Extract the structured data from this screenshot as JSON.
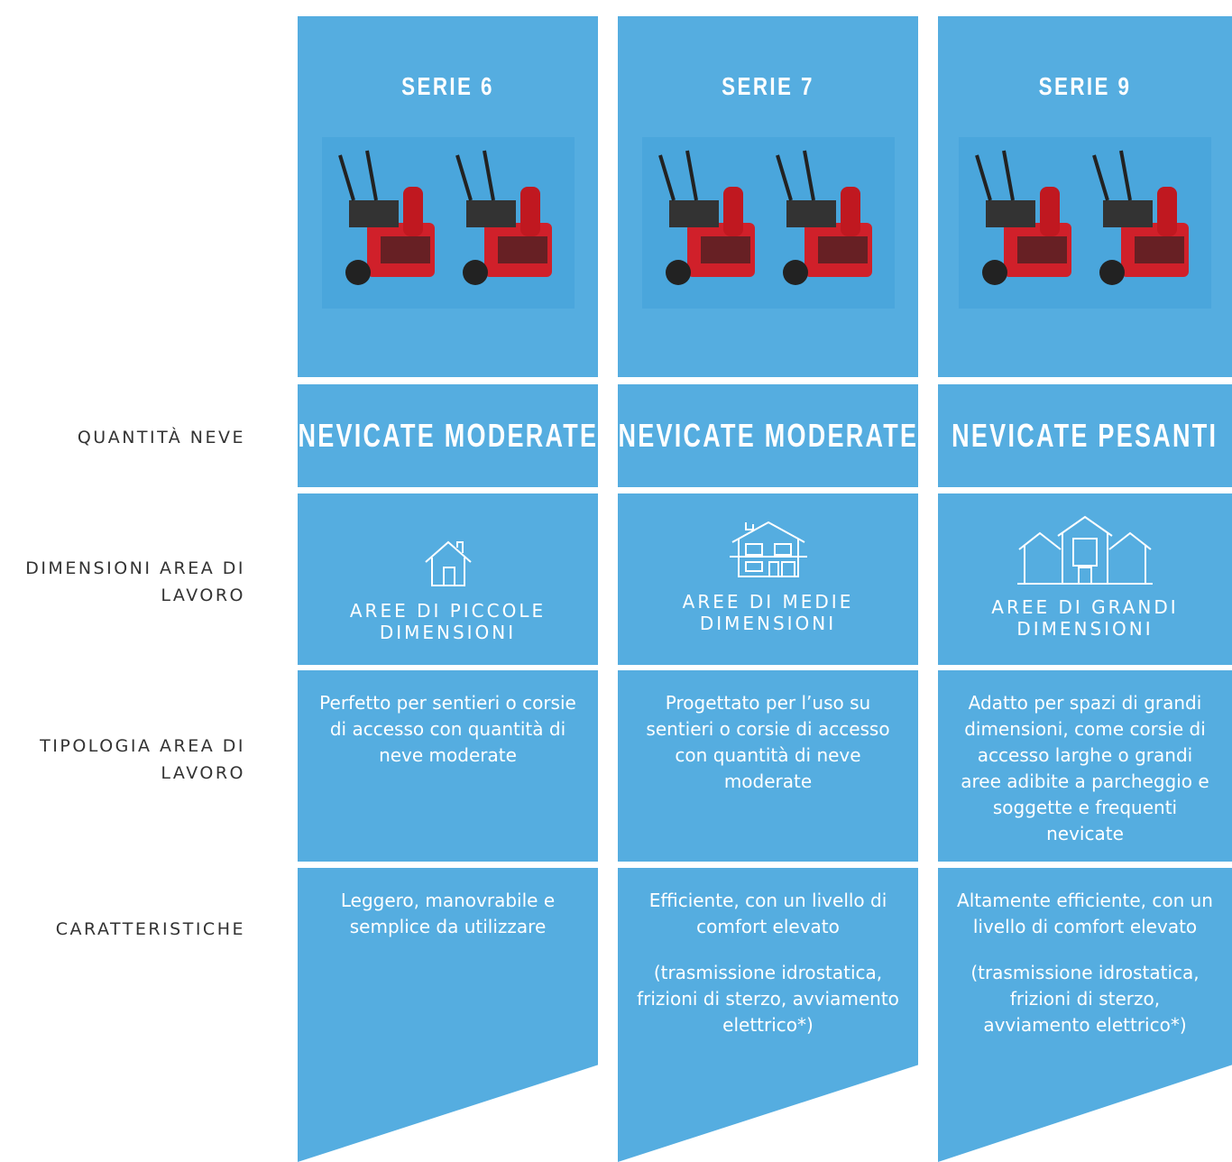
{
  "row_labels": [
    "QUANTITÀ NEVE",
    "DIMENSIONI AREA DI LAVORO",
    "TIPOLOGIA AREA DI LAVORO",
    "CARATTERISTICHE"
  ],
  "columns": [
    {
      "title": "SERIE 6",
      "snow": "NEVICATE MODERATE",
      "area": "AREE DI PICCOLE DIMENSIONI",
      "type": "Perfetto per sentieri o corsie di accesso con quantità di neve moderate",
      "features": [
        "Leggero, manovrabile e semplice da utilizzare"
      ]
    },
    {
      "title": "SERIE 7",
      "snow": "NEVICATE MODERATE",
      "area": "AREE DI MEDIE DIMENSIONI",
      "type": "Progettato per l’uso su sentieri o corsie di accesso con quantità di neve moderate",
      "features": [
        "Efficiente, con un livello di comfort elevato",
        "(trasmissione idrostatica, frizioni di sterzo, avviamento elettrico*)"
      ]
    },
    {
      "title": "SERIE 9",
      "snow": "NEVICATE PESANTI",
      "area": "AREE DI GRANDI DIMENSIONI",
      "type": "Adatto per spazi di grandi dimensioni, come corsie di accesso larghe o grandi aree adibite a parcheggio e soggette e frequenti nevicate",
      "features": [
        "Altamente efficiente, con un livello di comfort elevato",
        "(trasmissione idrostatica, frizioni di sterzo, avviamento elettrico*)"
      ]
    }
  ]
}
